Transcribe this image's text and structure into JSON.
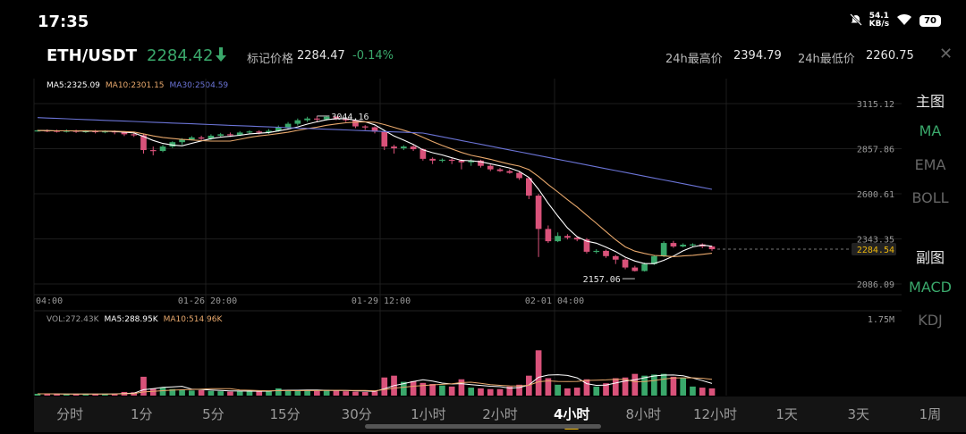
{
  "status": {
    "time": "17:35",
    "net_speed_value": "54.1",
    "net_speed_unit": "KB/s",
    "battery": "70"
  },
  "header": {
    "pair": "ETH/USDT",
    "price": "2284.42",
    "mark_label": "标记价格",
    "mark_price": "2284.47",
    "change": "-0.14%",
    "high_label": "24h最高价",
    "high": "2394.79",
    "low_label": "24h最低价",
    "low": "2260.75"
  },
  "ma_legend": {
    "ma5": "MA5:2325.09",
    "ma10": "MA10:2301.15",
    "ma30": "MA30:2504.59"
  },
  "vol_legend": {
    "vol": "VOL:272.43K",
    "ma5": "MA5:288.95K",
    "ma10": "MA10:514.96K"
  },
  "colors": {
    "up": "#3aa86b",
    "down": "#d9527a",
    "ma5": "#ffffff",
    "ma10": "#e8a86c",
    "ma30": "#6b74d6",
    "grid": "#1d1d1d"
  },
  "price_axis": [
    "3115.12",
    "2857.86",
    "2600.61",
    "2343.35",
    "2086.09"
  ],
  "current_price_tag": "2284.54",
  "vol_axis_max": "1.75M",
  "time_axis": [
    "04:00",
    "01-26 20:00",
    "01-29 12:00",
    "02-01 04:00"
  ],
  "annotations": {
    "high": "3044.16",
    "low": "2157.06"
  },
  "side_menu": {
    "main_label": "主图",
    "main_items": [
      "MA",
      "EMA",
      "BOLL"
    ],
    "sub_label": "副图",
    "sub_items": [
      "MACD",
      "KDJ"
    ]
  },
  "timeframes": [
    "分时",
    "1分",
    "5分",
    "15分",
    "30分",
    "1小时",
    "2小时",
    "4小时",
    "8小时",
    "12小时",
    "1天",
    "3天",
    "1周"
  ],
  "active_timeframe": "4小时",
  "chart_data": {
    "type": "candlestick",
    "ylim": [
      2086.09,
      3115.12
    ],
    "candles": [
      [
        2960,
        2962,
        2955,
        2966
      ],
      [
        2962,
        2960,
        2952,
        2968
      ],
      [
        2960,
        2958,
        2950,
        2966
      ],
      [
        2958,
        2960,
        2950,
        2968
      ],
      [
        2960,
        2956,
        2948,
        2966
      ],
      [
        2956,
        2958,
        2948,
        2964
      ],
      [
        2958,
        2955,
        2945,
        2965
      ],
      [
        2955,
        2957,
        2946,
        2963
      ],
      [
        2957,
        2953,
        2940,
        2962
      ],
      [
        2953,
        2940,
        2930,
        2958
      ],
      [
        2940,
        2935,
        2925,
        2948
      ],
      [
        2935,
        2850,
        2830,
        2942
      ],
      [
        2850,
        2845,
        2820,
        2870
      ],
      [
        2845,
        2870,
        2838,
        2880
      ],
      [
        2870,
        2895,
        2862,
        2900
      ],
      [
        2895,
        2910,
        2880,
        2918
      ],
      [
        2910,
        2922,
        2905,
        2930
      ],
      [
        2922,
        2915,
        2905,
        2932
      ],
      [
        2915,
        2932,
        2908,
        2940
      ],
      [
        2932,
        2940,
        2925,
        2948
      ],
      [
        2940,
        2935,
        2925,
        2950
      ],
      [
        2935,
        2950,
        2930,
        2958
      ],
      [
        2950,
        2956,
        2940,
        2963
      ],
      [
        2956,
        2950,
        2940,
        2963
      ],
      [
        2950,
        2960,
        2942,
        2970
      ],
      [
        2960,
        2980,
        2955,
        2990
      ],
      [
        2980,
        3000,
        2970,
        3010
      ],
      [
        3000,
        3020,
        2990,
        3030
      ],
      [
        3020,
        3030,
        3010,
        3040
      ],
      [
        3030,
        3025,
        3010,
        3044.16
      ],
      [
        3025,
        3040,
        3018,
        3044
      ],
      [
        3040,
        3030,
        3020,
        3044
      ],
      [
        3030,
        3020,
        3010,
        3035
      ],
      [
        3020,
        2985,
        2975,
        3025
      ],
      [
        2985,
        2980,
        2965,
        2992
      ],
      [
        2980,
        2955,
        2945,
        2985
      ],
      [
        2955,
        2870,
        2850,
        2960
      ],
      [
        2870,
        2860,
        2830,
        2880
      ],
      [
        2860,
        2870,
        2850,
        2878
      ],
      [
        2870,
        2855,
        2845,
        2880
      ],
      [
        2855,
        2800,
        2790,
        2860
      ],
      [
        2800,
        2790,
        2770,
        2808
      ],
      [
        2790,
        2795,
        2780,
        2802
      ],
      [
        2795,
        2790,
        2770,
        2803
      ],
      [
        2790,
        2780,
        2740,
        2798
      ],
      [
        2780,
        2790,
        2760,
        2800
      ],
      [
        2790,
        2760,
        2750,
        2795
      ],
      [
        2760,
        2740,
        2730,
        2768
      ],
      [
        2740,
        2730,
        2725,
        2748
      ],
      [
        2730,
        2720,
        2715,
        2740
      ],
      [
        2720,
        2690,
        2680,
        2730
      ],
      [
        2690,
        2590,
        2570,
        2695
      ],
      [
        2590,
        2400,
        2240,
        2600
      ],
      [
        2400,
        2330,
        2320,
        2420
      ],
      [
        2330,
        2360,
        2325,
        2380
      ],
      [
        2360,
        2350,
        2340,
        2370
      ],
      [
        2350,
        2340,
        2330,
        2358
      ],
      [
        2340,
        2270,
        2260,
        2348
      ],
      [
        2270,
        2275,
        2260,
        2285
      ],
      [
        2275,
        2245,
        2235,
        2282
      ],
      [
        2245,
        2225,
        2200,
        2252
      ],
      [
        2225,
        2180,
        2170,
        2232
      ],
      [
        2180,
        2160,
        2157.06,
        2190
      ],
      [
        2160,
        2200,
        2157,
        2208
      ],
      [
        2200,
        2245,
        2195,
        2252
      ],
      [
        2245,
        2320,
        2240,
        2330
      ],
      [
        2320,
        2300,
        2292,
        2332
      ],
      [
        2300,
        2310,
        2295,
        2318
      ],
      [
        2310,
        2312,
        2295,
        2318
      ],
      [
        2312,
        2300,
        2290,
        2318
      ],
      [
        2300,
        2284.54,
        2275,
        2305
      ]
    ],
    "volume": [
      0.05,
      0.05,
      0.04,
      0.04,
      0.04,
      0.05,
      0.04,
      0.05,
      0.05,
      0.1,
      0.09,
      0.52,
      0.2,
      0.22,
      0.18,
      0.16,
      0.14,
      0.15,
      0.13,
      0.12,
      0.11,
      0.12,
      0.14,
      0.12,
      0.13,
      0.2,
      0.15,
      0.14,
      0.15,
      0.13,
      0.16,
      0.14,
      0.12,
      0.11,
      0.1,
      0.12,
      0.5,
      0.55,
      0.38,
      0.4,
      0.35,
      0.32,
      0.28,
      0.25,
      0.45,
      0.22,
      0.2,
      0.18,
      0.18,
      0.25,
      0.3,
      0.55,
      1.25,
      0.48,
      0.3,
      0.2,
      0.22,
      0.45,
      0.25,
      0.34,
      0.48,
      0.5,
      0.6,
      0.55,
      0.58,
      0.6,
      0.52,
      0.48,
      0.25,
      0.22,
      0.2
    ]
  }
}
